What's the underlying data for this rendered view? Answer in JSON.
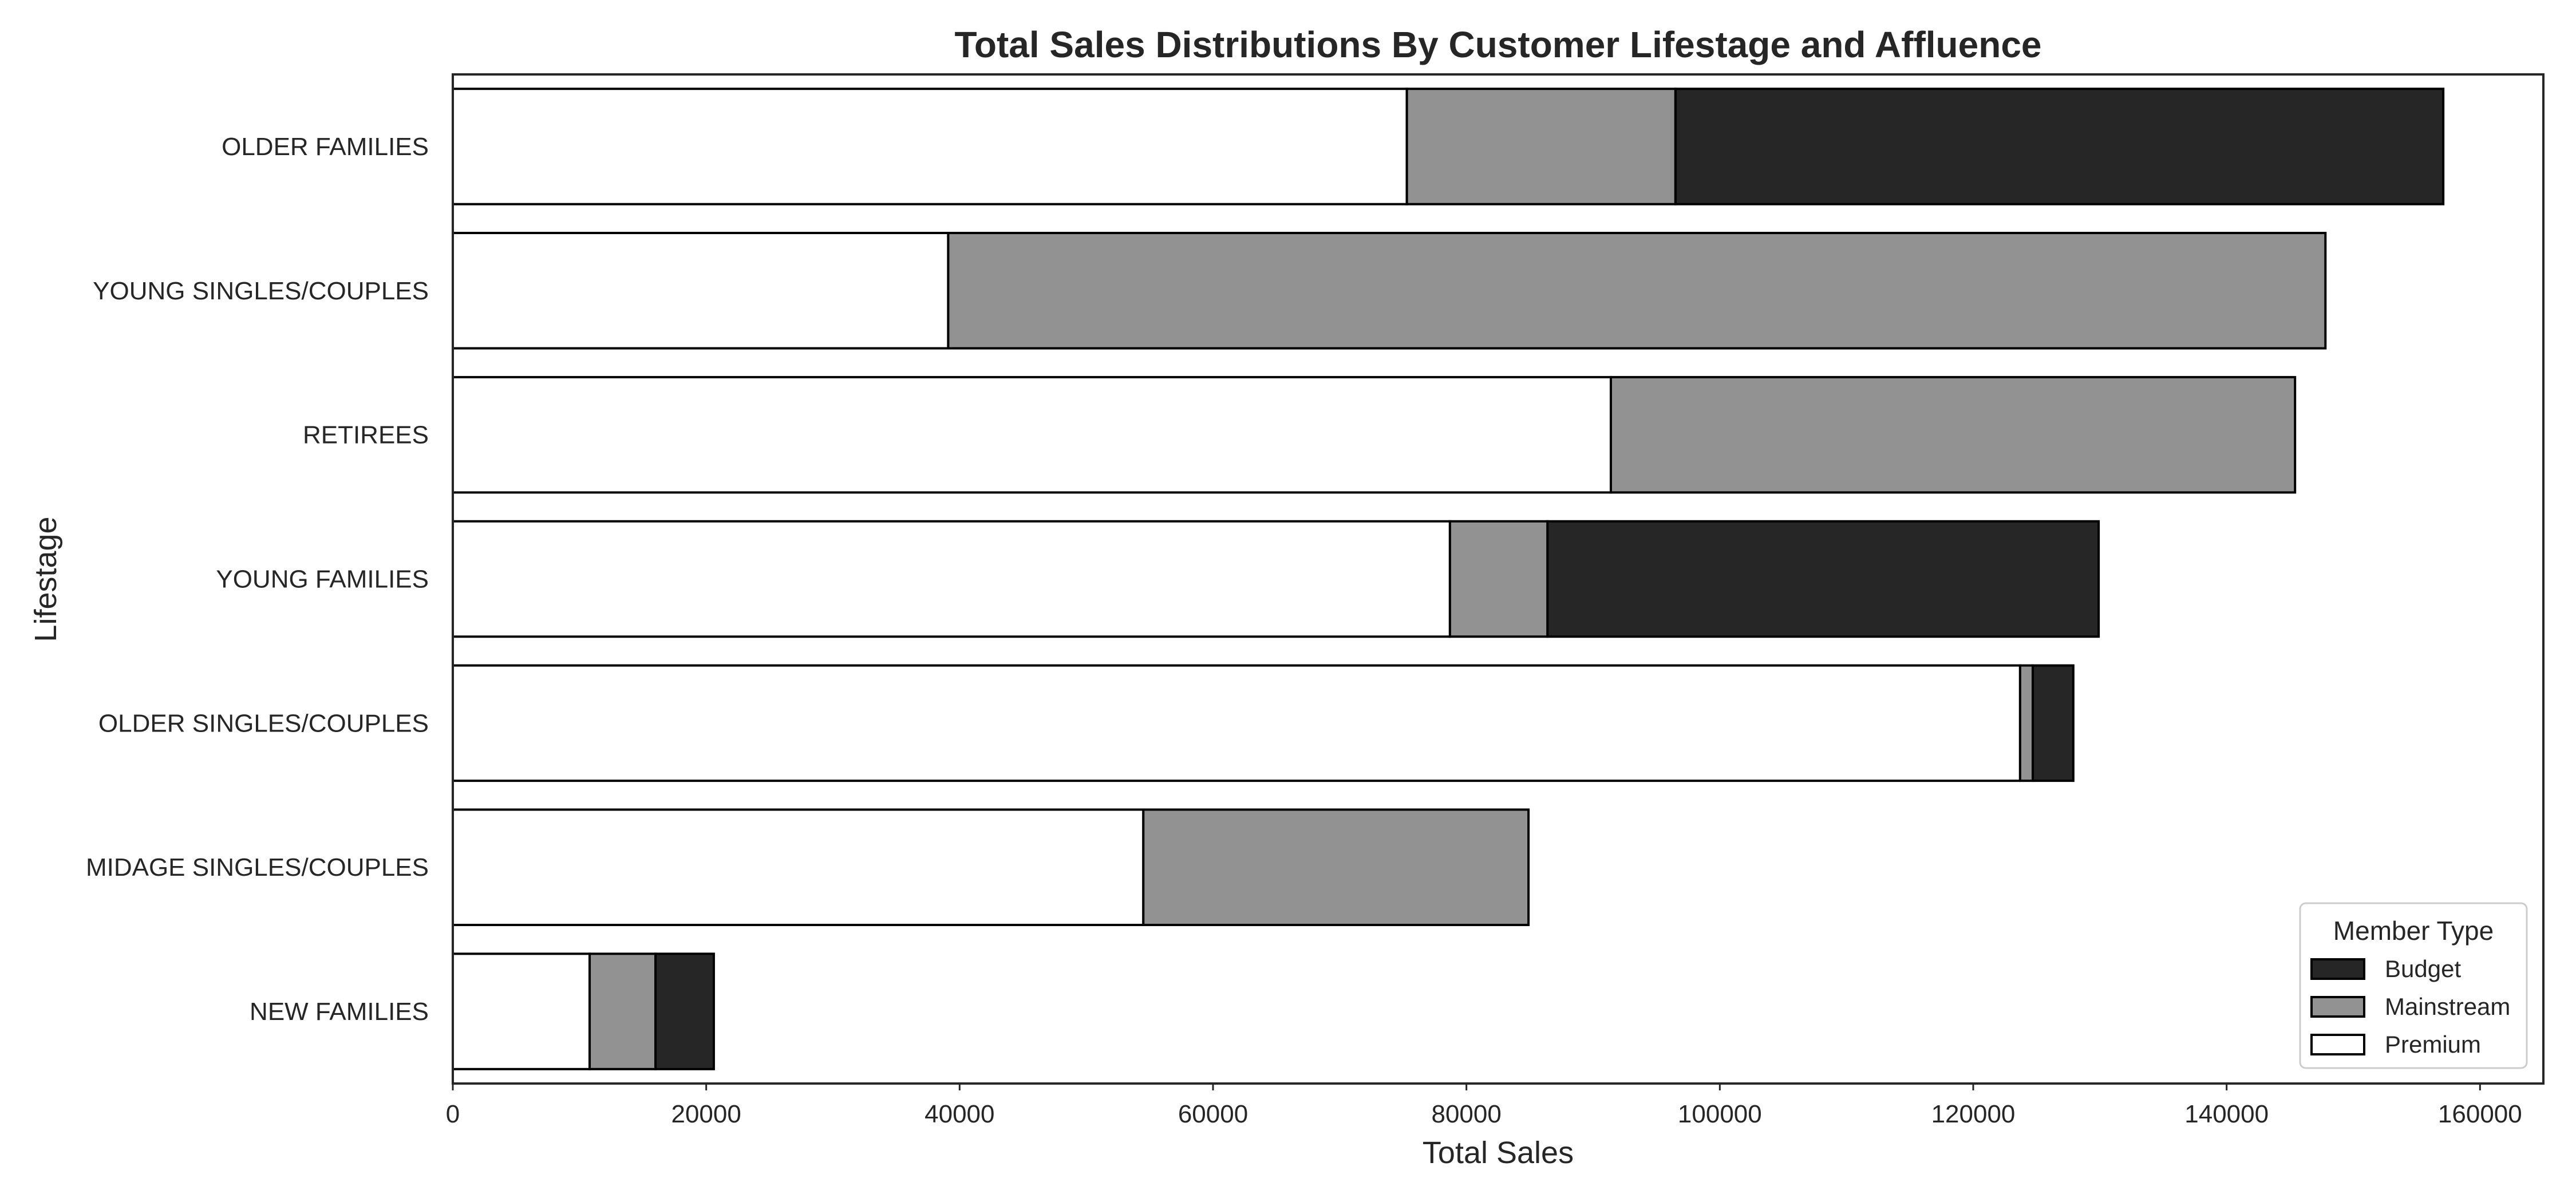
{
  "chart_data": {
    "type": "bar",
    "orientation": "horizontal",
    "stacked": true,
    "title": "Total Sales Distributions By Customer Lifestage and Affluence",
    "xlabel": "Total Sales",
    "ylabel": "Lifestage",
    "xlim": [
      0,
      165000
    ],
    "xticks": [
      0,
      20000,
      40000,
      60000,
      80000,
      100000,
      120000,
      140000,
      160000
    ],
    "xtick_labels": [
      "0",
      "20000",
      "40000",
      "60000",
      "80000",
      "100000",
      "120000",
      "140000",
      "160000"
    ],
    "grid": false,
    "categories": [
      "OLDER FAMILIES",
      "YOUNG SINGLES/COUPLES",
      "RETIREES",
      "YOUNG FAMILIES",
      "OLDER SINGLES/COUPLES",
      "MIDAGE SINGLES/COUPLES",
      "NEW FAMILIES"
    ],
    "series": [
      {
        "name": "Premium",
        "color": "#ffffff",
        "values": [
          75300,
          39100,
          91400,
          78700,
          123700,
          54500,
          10800
        ]
      },
      {
        "name": "Mainstream",
        "color": "#929292",
        "values": [
          21200,
          108700,
          54000,
          7700,
          1000,
          30400,
          5200
        ]
      },
      {
        "name": "Budget",
        "color": "#262626",
        "values": [
          60600,
          0,
          0,
          43500,
          3200,
          0,
          4600
        ]
      }
    ],
    "legend": {
      "title": "Member Type",
      "placement": "lower-right",
      "order": [
        "Budget",
        "Mainstream",
        "Premium"
      ]
    }
  }
}
